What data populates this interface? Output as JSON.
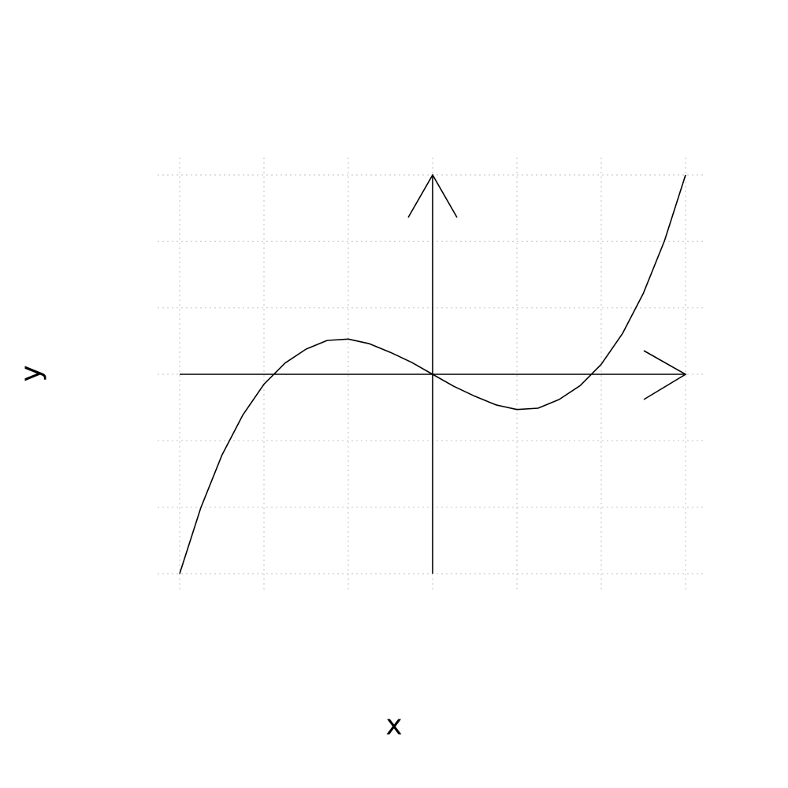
{
  "chart_data": {
    "type": "line",
    "title": "",
    "xlabel": "x",
    "ylabel": "y",
    "xlim": [
      -3,
      3
    ],
    "ylim": [
      -3,
      3
    ],
    "grid": true,
    "grid_style": "dotted",
    "x_ticks": [
      -3,
      -2,
      -1,
      0,
      1,
      2,
      3
    ],
    "y_ticks": [
      -3,
      -2,
      -1,
      0,
      1,
      2,
      3
    ],
    "series": [
      {
        "x": [
          -3.0,
          -2.75,
          -2.5,
          -2.25,
          -2.0,
          -1.75,
          -1.5,
          -1.25,
          -1.0,
          -0.75,
          -0.5,
          -0.25,
          0.0,
          0.25,
          0.5,
          0.75,
          1.0,
          1.25,
          1.5,
          1.75,
          2.0,
          2.25,
          2.5,
          2.75,
          3.0
        ],
        "y": [
          -3.0,
          -2.01,
          -1.22,
          -0.61,
          -0.15,
          0.17,
          0.38,
          0.51,
          0.53,
          0.46,
          0.33,
          0.18,
          0.0,
          -0.18,
          -0.33,
          -0.46,
          -0.53,
          -0.51,
          -0.38,
          -0.17,
          0.15,
          0.61,
          1.22,
          2.01,
          3.0
        ]
      }
    ],
    "axes_arrows": true,
    "colors": {
      "curve": "#000000",
      "axes": "#000000",
      "grid": "#cccccc"
    }
  }
}
